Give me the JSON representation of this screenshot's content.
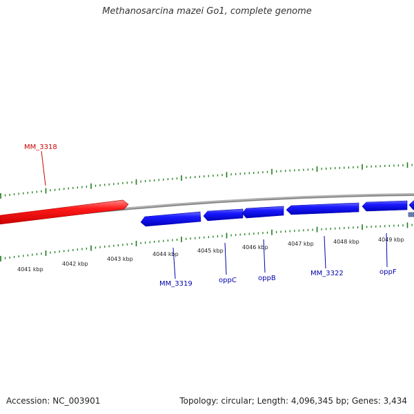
{
  "title": "Methanosarcina mazei Go1, complete genome",
  "footer": {
    "accession": "Accession: NC_003901",
    "summary": "Topology: circular; Length: 4,096,345 bp; Genes: 3,434"
  },
  "colors": {
    "forward_gene": "#ff0000",
    "reverse_gene": "#0000ee",
    "backbone": "#909090",
    "ticks": "#1a7a1a",
    "forward_label": "#cc0000",
    "reverse_label": "#0000aa",
    "tick_text": "#222222"
  },
  "scale_labels": [
    "4041 kbp",
    "4042 kbp",
    "4043 kbp",
    "4044 kbp",
    "4045 kbp",
    "4046 kbp",
    "4047 kbp",
    "4048 kbp",
    "4049 kbp"
  ],
  "genes": [
    {
      "label": "MM_3318",
      "strand": "forward"
    },
    {
      "label": "MM_3319",
      "strand": "reverse"
    },
    {
      "label": "oppC",
      "strand": "reverse"
    },
    {
      "label": "oppB",
      "strand": "reverse"
    },
    {
      "label": "MM_3322",
      "strand": "reverse"
    },
    {
      "label": "oppF",
      "strand": "reverse"
    }
  ]
}
